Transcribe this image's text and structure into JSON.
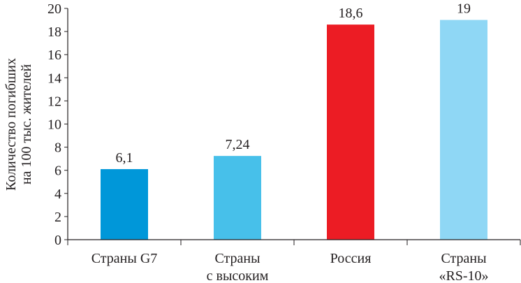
{
  "chart_data": {
    "type": "bar",
    "title": "",
    "xlabel": "",
    "ylabel": [
      "Количество погибших",
      "на 100 тыс. жителей"
    ],
    "ylim": [
      0,
      20
    ],
    "yticks": [
      0,
      2,
      4,
      6,
      8,
      10,
      12,
      14,
      16,
      18,
      20
    ],
    "grid": false,
    "categories": [
      [
        "Страны G7"
      ],
      [
        "Страны",
        "с высоким"
      ],
      [
        "Россия"
      ],
      [
        "Страны",
        "«RS-10»"
      ]
    ],
    "values": [
      6.1,
      7.24,
      18.6,
      19
    ],
    "data_labels": [
      "6,1",
      "7,24",
      "18,6",
      "19"
    ],
    "colors": [
      "#0097d9",
      "#47c0ea",
      "#ec1c24",
      "#8fd7f5"
    ]
  }
}
